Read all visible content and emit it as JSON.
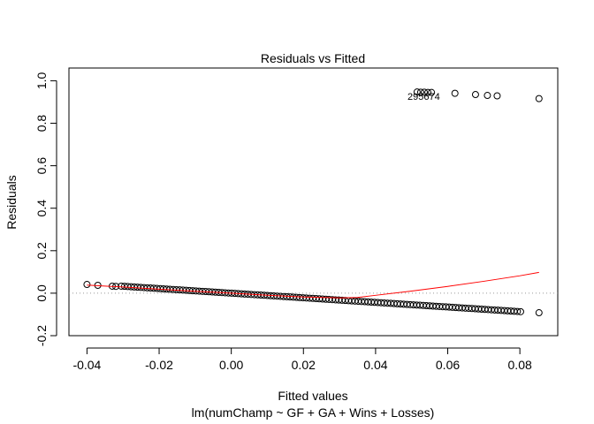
{
  "chart_data": {
    "type": "scatter",
    "title": "Residuals vs Fitted",
    "xlabel": "Fitted values",
    "subtitle": "lm(numChamp ~ GF + GA + Wins + Losses)",
    "ylabel": "Residuals",
    "xlim": [
      -0.045,
      0.0905
    ],
    "ylim": [
      -0.2,
      1.06
    ],
    "x_ticks": [
      -0.04,
      -0.02,
      0.0,
      0.02,
      0.04,
      0.06,
      0.08
    ],
    "x_tick_labels": [
      "-0.04",
      "-0.02",
      "0.00",
      "0.02",
      "0.04",
      "0.06",
      "0.08"
    ],
    "y_ticks": [
      -0.2,
      0.0,
      0.2,
      0.4,
      0.6,
      0.8,
      1.0
    ],
    "y_tick_labels": [
      "-0.2",
      "0.0",
      "0.2",
      "0.4",
      "0.6",
      "0.8",
      "1.0"
    ],
    "reference_line": {
      "y": 0,
      "style": "dotted",
      "color": "#999999"
    },
    "point_color": "#000000",
    "smoother_color": "#ff0000",
    "labeled_points_text": "295674",
    "outliers": [
      {
        "x": 0.0515,
        "y": 0.947
      },
      {
        "x": 0.0525,
        "y": 0.946
      },
      {
        "x": 0.0535,
        "y": 0.946
      },
      {
        "x": 0.0545,
        "y": 0.945
      },
      {
        "x": 0.0555,
        "y": 0.945
      },
      {
        "x": 0.062,
        "y": 0.941
      },
      {
        "x": 0.0677,
        "y": 0.935
      },
      {
        "x": 0.071,
        "y": 0.931
      },
      {
        "x": 0.0737,
        "y": 0.929
      },
      {
        "x": 0.0853,
        "y": 0.916
      }
    ],
    "main_band": {
      "slope": -1.085,
      "intercept": 0.0,
      "x_min": -0.0305,
      "x_max": 0.0805,
      "extra_points": [
        {
          "x": -0.04,
          "y": 0.041
        },
        {
          "x": -0.037,
          "y": 0.037
        },
        {
          "x": -0.033,
          "y": 0.033
        },
        {
          "x": -0.032,
          "y": 0.032
        },
        {
          "x": 0.0853,
          "y": -0.092
        }
      ]
    },
    "smoother": [
      {
        "x": -0.04,
        "y": 0.038
      },
      {
        "x": -0.03,
        "y": 0.029
      },
      {
        "x": -0.02,
        "y": 0.019
      },
      {
        "x": -0.01,
        "y": 0.009
      },
      {
        "x": 0.0,
        "y": 0.0
      },
      {
        "x": 0.01,
        "y": -0.01
      },
      {
        "x": 0.02,
        "y": -0.018
      },
      {
        "x": 0.03,
        "y": -0.022
      },
      {
        "x": 0.035,
        "y": -0.02
      },
      {
        "x": 0.04,
        "y": -0.01
      },
      {
        "x": 0.05,
        "y": 0.01
      },
      {
        "x": 0.06,
        "y": 0.032
      },
      {
        "x": 0.07,
        "y": 0.056
      },
      {
        "x": 0.08,
        "y": 0.082
      },
      {
        "x": 0.0853,
        "y": 0.098
      }
    ]
  }
}
